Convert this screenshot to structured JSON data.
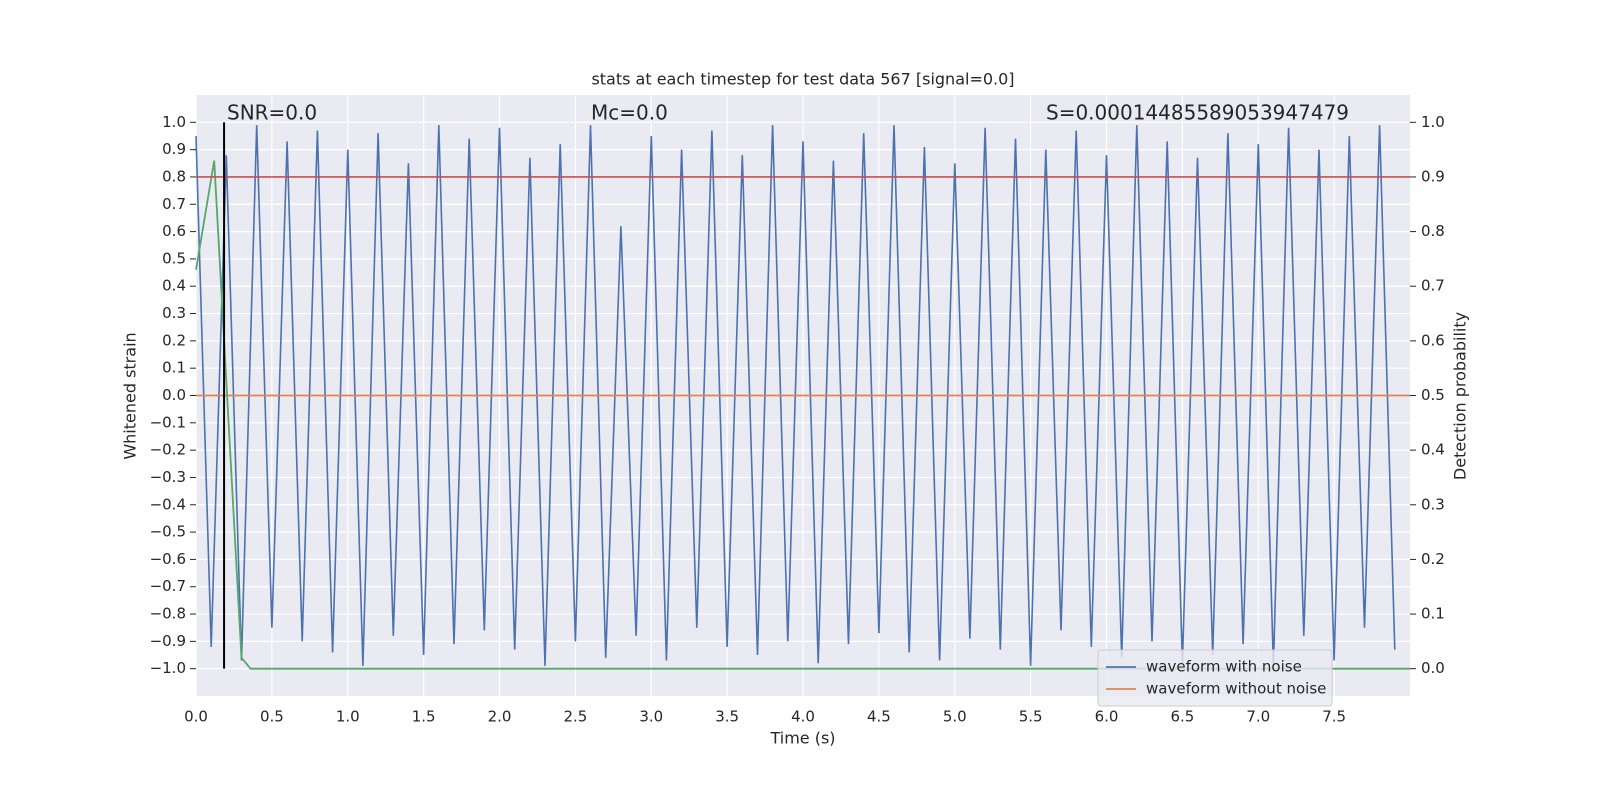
{
  "chart_data": {
    "type": "line",
    "title": "stats at each timestep for test data 567 [signal=0.0]",
    "xlabel": "Time (s)",
    "ylabel": "Whitened strain",
    "y2label": "Detection probability",
    "annotations": [
      "SNR=0.0",
      "Mc=0.0",
      "S=0.00014485589053947479"
    ],
    "xlim": [
      0,
      8
    ],
    "ylim": [
      -1.1,
      1.1
    ],
    "y2lim": [
      -0.05,
      1.05
    ],
    "grid": true,
    "legend": "lower right",
    "xticks": [
      {
        "value": 0,
        "label": "0.0"
      },
      0.5,
      {
        "value": 1,
        "label": "1.0"
      },
      1.5,
      {
        "value": 2,
        "label": "2.0"
      },
      2.5,
      {
        "value": 3,
        "label": "3.0"
      },
      3.5,
      {
        "value": 4,
        "label": "4.0"
      },
      4.5,
      {
        "value": 5,
        "label": "5.0"
      },
      5.5,
      {
        "value": 6,
        "label": "6.0"
      },
      6.5,
      {
        "value": 7,
        "label": "7.0"
      },
      7.5
    ],
    "yticks": [
      {
        "value": -1,
        "label": "−1.0"
      },
      {
        "value": -0.9,
        "label": "−0.9"
      },
      {
        "value": -0.8,
        "label": "−0.8"
      },
      {
        "value": -0.7,
        "label": "−0.7"
      },
      {
        "value": -0.6,
        "label": "−0.6"
      },
      {
        "value": -0.5,
        "label": "−0.5"
      },
      {
        "value": -0.4,
        "label": "−0.4"
      },
      {
        "value": -0.3,
        "label": "−0.3"
      },
      {
        "value": -0.2,
        "label": "−0.2"
      },
      {
        "value": -0.1,
        "label": "−0.1"
      },
      {
        "value": 0,
        "label": "0.0"
      },
      0.1,
      0.2,
      0.3,
      0.4,
      0.5,
      0.6,
      0.7,
      0.8,
      0.9,
      {
        "value": 1,
        "label": "1.0"
      }
    ],
    "y2ticks": [
      {
        "value": 0,
        "label": "0.0"
      },
      0.1,
      0.2,
      0.3,
      0.4,
      0.5,
      0.6,
      0.7,
      0.8,
      0.9,
      {
        "value": 1,
        "label": "1.0"
      }
    ],
    "series": [
      {
        "name": "waveform with noise",
        "color": "#4c72b0",
        "x": [
          0.0,
          0.1,
          0.2,
          0.3,
          0.4,
          0.5,
          0.6,
          0.7,
          0.8,
          0.9,
          1.0,
          1.1,
          1.2,
          1.3,
          1.4,
          1.5,
          1.6,
          1.7,
          1.8,
          1.9,
          2.0,
          2.1,
          2.2,
          2.3,
          2.4,
          2.5,
          2.6,
          2.7,
          2.8,
          2.9,
          3.0,
          3.1,
          3.2,
          3.3,
          3.4,
          3.5,
          3.6,
          3.7,
          3.8,
          3.9,
          4.0,
          4.1,
          4.2,
          4.3,
          4.4,
          4.5,
          4.6,
          4.7,
          4.8,
          4.9,
          5.0,
          5.1,
          5.2,
          5.3,
          5.4,
          5.5,
          5.6,
          5.7,
          5.8,
          5.9,
          6.0,
          6.1,
          6.2,
          6.3,
          6.4,
          6.5,
          6.6,
          6.7,
          6.8,
          6.9,
          7.0,
          7.1,
          7.2,
          7.3,
          7.4,
          7.5,
          7.6,
          7.7,
          7.8,
          7.9
        ],
        "values": [
          0.95,
          -0.92,
          0.88,
          -0.97,
          0.99,
          -0.85,
          0.93,
          -0.9,
          0.97,
          -0.94,
          0.9,
          -0.99,
          0.96,
          -0.88,
          0.85,
          -0.95,
          0.99,
          -0.91,
          0.94,
          -0.86,
          0.98,
          -0.93,
          0.87,
          -0.99,
          0.92,
          -0.9,
          0.99,
          -0.96,
          0.62,
          -0.88,
          0.95,
          -0.97,
          0.9,
          -0.85,
          0.97,
          -0.92,
          0.88,
          -0.95,
          0.99,
          -0.9,
          0.93,
          -0.98,
          0.86,
          -0.91,
          0.96,
          -0.87,
          0.99,
          -0.94,
          0.91,
          -0.97,
          0.85,
          -0.89,
          0.98,
          -0.93,
          0.94,
          -0.99,
          0.9,
          -0.86,
          0.97,
          -0.92,
          0.88,
          -0.96,
          0.99,
          -0.9,
          0.93,
          -0.98,
          0.87,
          -0.95,
          0.96,
          -0.91,
          0.92,
          -0.99,
          0.98,
          -0.88,
          0.9,
          -0.97,
          0.95,
          -0.85,
          0.99,
          -0.93
        ]
      },
      {
        "name": "waveform without noise",
        "color": "#dd8452",
        "x": [
          0,
          8
        ],
        "values": [
          0,
          0
        ]
      },
      {
        "color": "#55a868",
        "axis": "y2",
        "x": [
          0,
          0.12,
          0.3,
          0.36,
          8
        ],
        "values": [
          0.73,
          0.93,
          0.02,
          0,
          0
        ]
      }
    ],
    "hlines": [
      {
        "value": 0.9,
        "axis": "y2",
        "color": "#c44e52"
      }
    ],
    "vlines": [
      {
        "value": 0.185,
        "color": "#000000"
      }
    ]
  }
}
